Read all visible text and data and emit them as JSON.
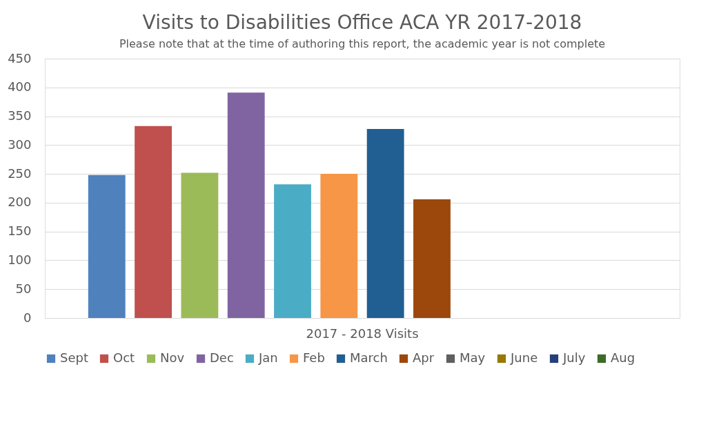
{
  "chart_data": {
    "type": "bar",
    "title": "Visits to Disabilities Office ACA YR 2017-2018",
    "subtitle": "Please note that at the time of authoring this report, the academic year is not complete",
    "categories": [
      "2017 - 2018 Visits"
    ],
    "series": [
      {
        "name": "Sept",
        "color": "#4f81bd",
        "values": [
          248
        ]
      },
      {
        "name": "Oct",
        "color": "#c0504d",
        "values": [
          333
        ]
      },
      {
        "name": "Nov",
        "color": "#9bbb59",
        "values": [
          252
        ]
      },
      {
        "name": "Dec",
        "color": "#8064a2",
        "values": [
          391
        ]
      },
      {
        "name": "Jan",
        "color": "#4bacc6",
        "values": [
          232
        ]
      },
      {
        "name": "Feb",
        "color": "#f79646",
        "values": [
          250
        ]
      },
      {
        "name": "March",
        "color": "#215e92",
        "values": [
          328
        ]
      },
      {
        "name": "Apr",
        "color": "#9c480c",
        "values": [
          206
        ]
      },
      {
        "name": "May",
        "color": "#5f5f5f",
        "values": [
          null
        ]
      },
      {
        "name": "June",
        "color": "#977800",
        "values": [
          null
        ]
      },
      {
        "name": "July",
        "color": "#263f79",
        "values": [
          null
        ]
      },
      {
        "name": "Aug",
        "color": "#3d6a28",
        "values": [
          null
        ]
      }
    ],
    "ylim": [
      0,
      450
    ],
    "yticks": [
      0,
      50,
      100,
      150,
      200,
      250,
      300,
      350,
      400,
      450
    ],
    "grid": "y",
    "legend": "bottom"
  }
}
